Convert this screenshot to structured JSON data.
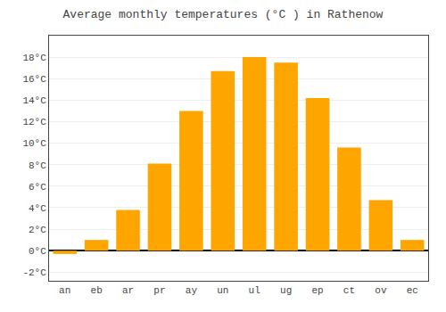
{
  "chart_data": {
    "type": "bar",
    "title": "Average monthly temperatures (°C ) in Rathenow",
    "categories": [
      "an",
      "eb",
      "ar",
      "pr",
      "ay",
      "un",
      "ul",
      "ug",
      "ep",
      "ct",
      "ov",
      "ec"
    ],
    "values": [
      -0.3,
      1.0,
      3.8,
      8.1,
      13.0,
      16.7,
      18.0,
      17.5,
      14.2,
      9.6,
      4.7,
      1.0
    ],
    "color": "#FFA500",
    "ylim": [
      -2.8,
      20.0
    ],
    "yticks": [
      {
        "value": -2,
        "label": "-2°C"
      },
      {
        "value": 0,
        "label": "0°C"
      },
      {
        "value": 2,
        "label": "2°C"
      },
      {
        "value": 4,
        "label": "4°C"
      },
      {
        "value": 6,
        "label": "6°C"
      },
      {
        "value": 8,
        "label": "8°C"
      },
      {
        "value": 10,
        "label": "10°C"
      },
      {
        "value": 12,
        "label": "12°C"
      },
      {
        "value": 14,
        "label": "14°C"
      },
      {
        "value": 16,
        "label": "16°C"
      },
      {
        "value": 18,
        "label": "18°C"
      }
    ],
    "grid": true
  }
}
